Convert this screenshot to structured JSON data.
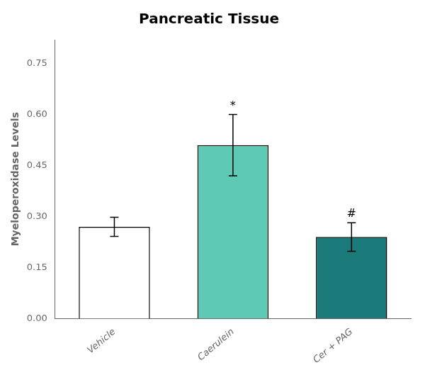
{
  "chart_data": {
    "type": "bar",
    "title": "Pancreatic Tissue",
    "ylabel": "Myeloperoxidase Levels",
    "categories": [
      "Vehicle",
      "Caerulein",
      "Cer + PAG"
    ],
    "values": [
      0.27,
      0.51,
      0.24
    ],
    "errors": [
      0.028,
      0.09,
      0.042
    ],
    "colors": [
      "#ffffff",
      "#5ecab5",
      "#1b7b7a"
    ],
    "ylim": [
      0.0,
      0.82
    ],
    "yticks": [
      {
        "value": 0,
        "label": "0.00"
      },
      0.15,
      {
        "value": 0.3,
        "label": "0.30"
      },
      0.45,
      {
        "value": 0.6,
        "label": "0.60"
      },
      0.75
    ],
    "annotations": [
      {
        "text": "*",
        "category": "Caerulein"
      },
      {
        "text": "#",
        "category": "Cer + PAG"
      }
    ],
    "grid": false,
    "legend": false
  }
}
